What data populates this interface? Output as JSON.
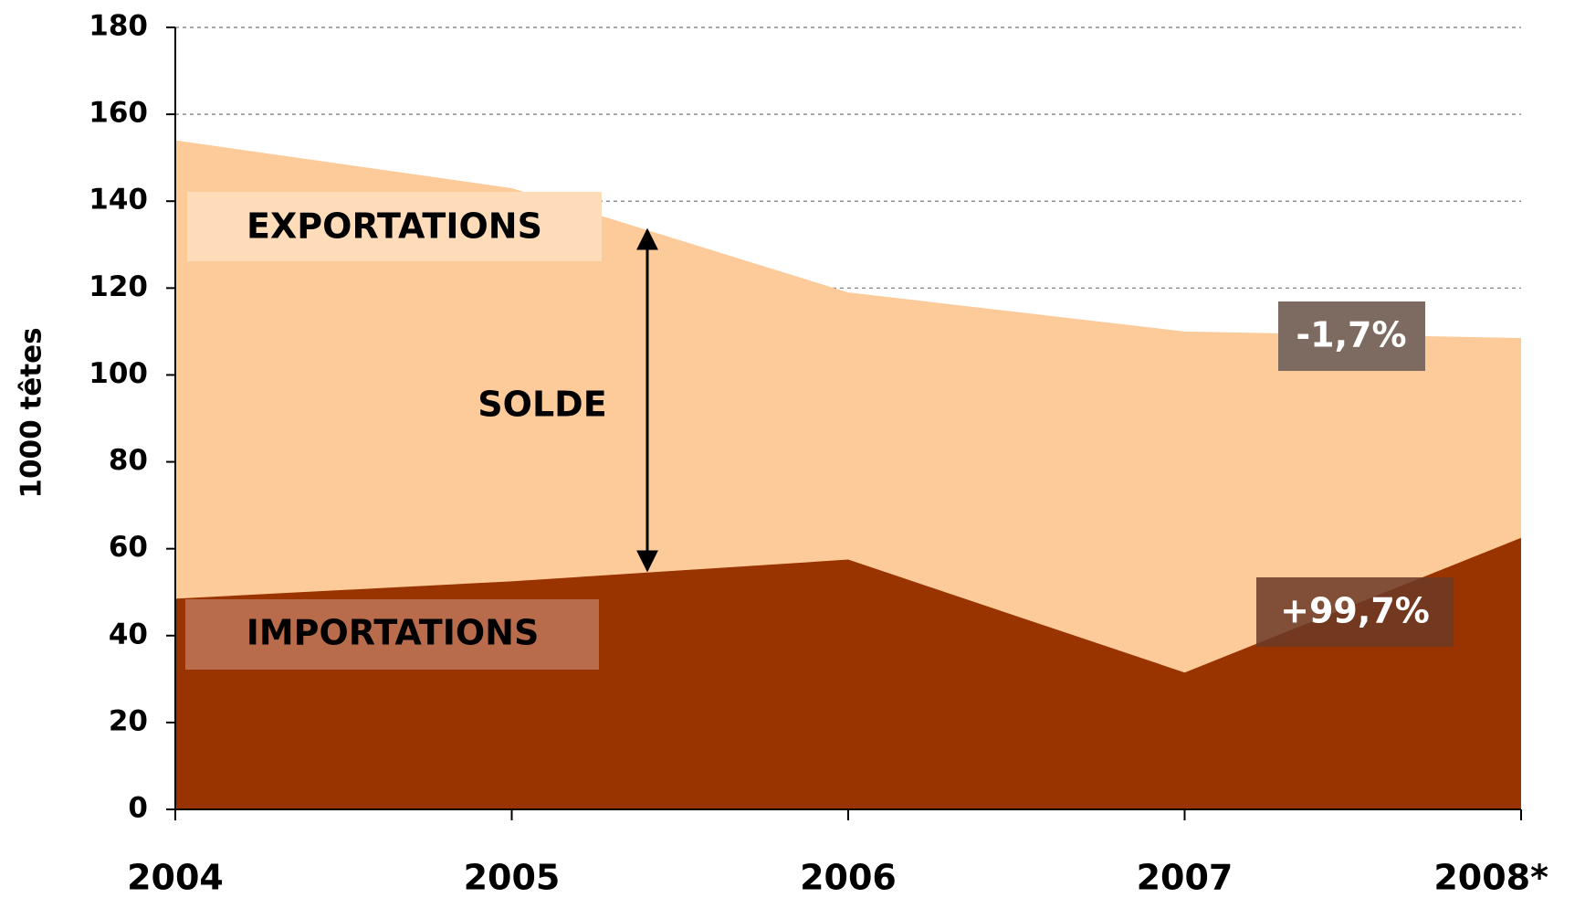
{
  "chart_data": {
    "type": "area",
    "y_label": "1000 têtes",
    "categories": [
      "2004",
      "2005",
      "2006",
      "2007",
      "2008*"
    ],
    "series": [
      {
        "name": "EXPORTATIONS",
        "color": "#fdca9a",
        "values": [
          154,
          143,
          119,
          110,
          108.5
        ]
      },
      {
        "name": "IMPORTATIONS",
        "color": "#993300",
        "values": [
          48.5,
          52.5,
          57.5,
          31.5,
          62.5
        ]
      }
    ],
    "annotations": [
      "SOLDE",
      "-1,7%",
      "+99,7%"
    ],
    "ylim": [
      0,
      180
    ],
    "yticks": [
      0,
      20,
      40,
      60,
      80,
      100,
      120,
      140,
      160,
      180
    ],
    "grid": true
  }
}
